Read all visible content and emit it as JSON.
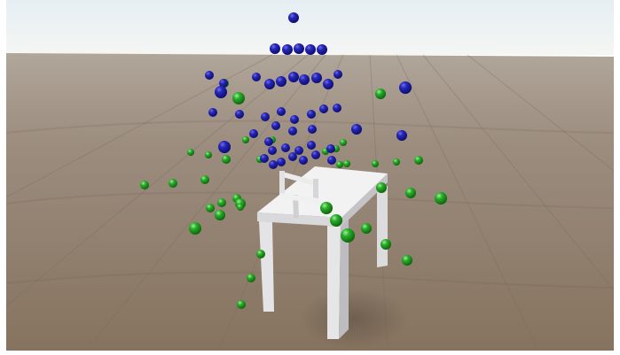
{
  "scene": {
    "description_colors": {
      "sky_top": "#e8f0f4",
      "sky_horizon": "#f3f6f4",
      "floor_near": "#8a7868",
      "floor_far": "#a69a8e",
      "table": "#f1f1f1",
      "table_shade": "#c9c9cc",
      "blue_sphere": "#1a1aa0",
      "green_sphere": "#1f9a1f"
    },
    "blue_sphere_count": 62,
    "green_sphere_count": 44
  }
}
